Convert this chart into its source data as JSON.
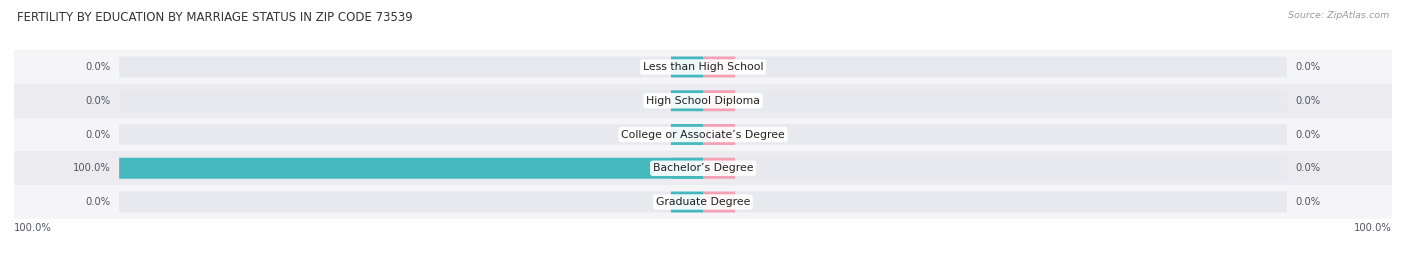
{
  "title": "FERTILITY BY EDUCATION BY MARRIAGE STATUS IN ZIP CODE 73539",
  "source_text": "Source: ZipAtlas.com",
  "categories": [
    "Less than High School",
    "High School Diploma",
    "College or Associate’s Degree",
    "Bachelor’s Degree",
    "Graduate Degree"
  ],
  "married_values": [
    0.0,
    0.0,
    0.0,
    100.0,
    0.0
  ],
  "unmarried_values": [
    0.0,
    0.0,
    0.0,
    0.0,
    0.0
  ],
  "married_color": "#45b8be",
  "unmarried_color": "#f4a0b5",
  "bar_bg_color_light": "#e8e8ef",
  "bar_bg_color_dark": "#dddde6",
  "row_bg_even": "#f5f5f8",
  "row_bg_odd": "#ebebf0",
  "bar_height": 0.62,
  "scale": 100.0,
  "nub_size": 5.5,
  "left_axis_label": "100.0%",
  "right_axis_label": "100.0%",
  "title_fontsize": 8.5,
  "cat_fontsize": 7.8,
  "val_fontsize": 7.2,
  "source_fontsize": 6.8,
  "legend_fontsize": 7.5
}
